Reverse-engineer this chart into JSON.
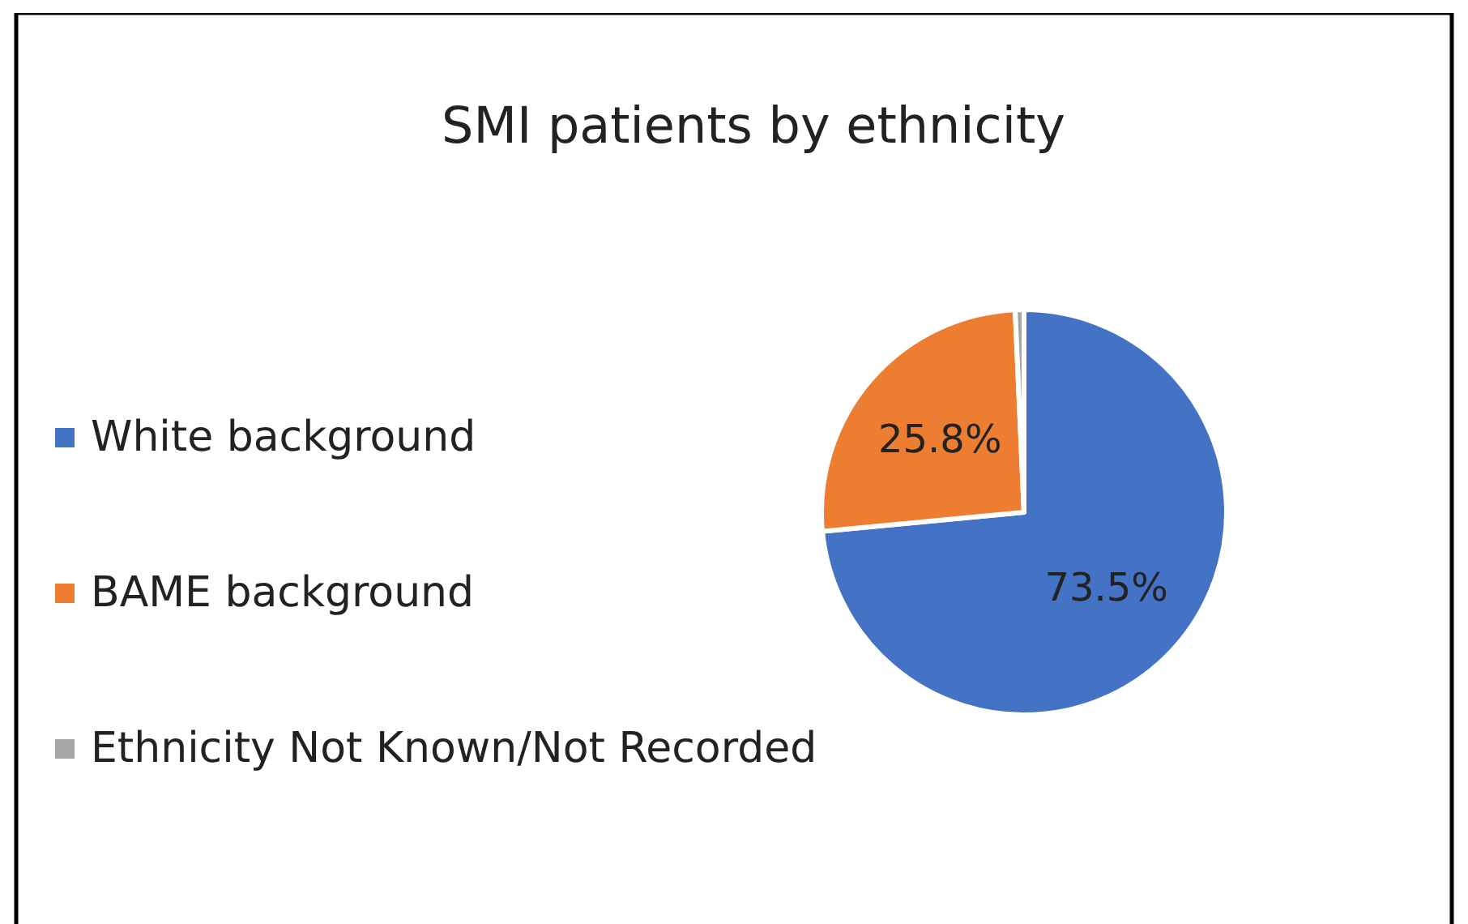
{
  "chart_data": {
    "type": "pie",
    "title": "SMI patients by ethnicity",
    "categories": [
      "White background",
      "BAME background",
      "Ethnicity Not Known/Not Recorded"
    ],
    "values": [
      73.5,
      25.8,
      0.7
    ],
    "colors": [
      "#4472c4",
      "#ed7d31",
      "#a5a5a5"
    ],
    "value_labels": [
      "73.5%",
      "25.8%",
      null
    ],
    "legend": "left"
  }
}
